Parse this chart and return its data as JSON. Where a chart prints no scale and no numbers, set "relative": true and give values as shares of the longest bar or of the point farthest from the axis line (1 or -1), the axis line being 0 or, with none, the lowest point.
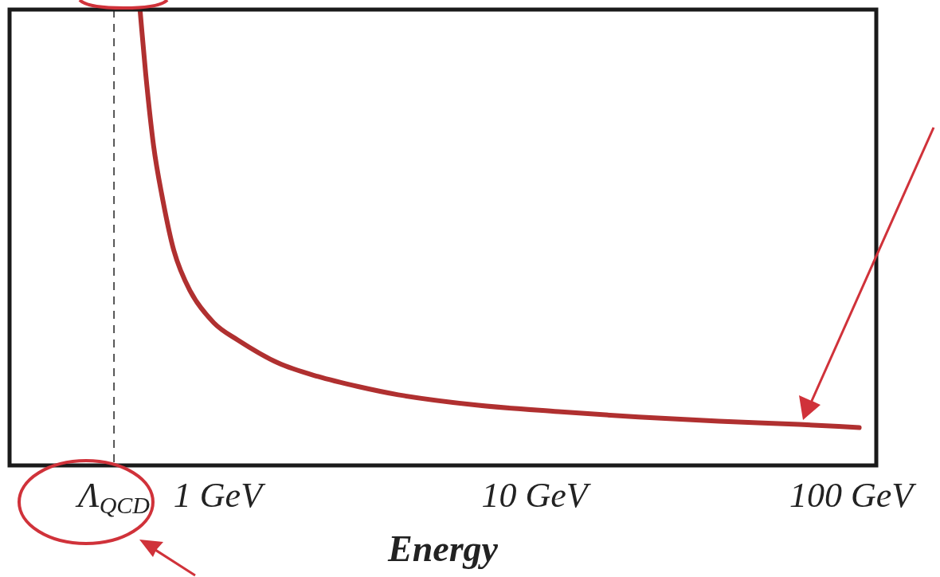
{
  "chart_data": {
    "type": "line",
    "relative": true,
    "xlabel": "Energy",
    "log": "x",
    "xlim": [
      0.22,
      120
    ],
    "xticks": [
      {
        "value": 0.47,
        "label": "Λ$_{QCD}$"
      },
      {
        "value": 1,
        "label": "1 GeV"
      },
      {
        "value": 10,
        "label": "10 GeV"
      },
      {
        "value": 100,
        "label": "100 GeV"
      }
    ],
    "ref_lines": [
      {
        "axis": "x",
        "value": 0.47,
        "color": "#222222",
        "line_style": "dashed"
      }
    ],
    "legend": false,
    "grid": false,
    "marker": "none",
    "line_style": "solid",
    "series": [
      {
        "color": "#b03030",
        "x": [
          0.568,
          0.592,
          0.627,
          0.665,
          0.726,
          0.816,
          0.971,
          1.157,
          1.548,
          2.072,
          2.773,
          3.712,
          6.65,
          11.9,
          21.3,
          38.2,
          68.4,
          106
        ],
        "values": [
          1,
          0.859,
          0.701,
          0.595,
          0.472,
          0.384,
          0.313,
          0.275,
          0.225,
          0.195,
          0.173,
          0.155,
          0.132,
          0.118,
          0.106,
          0.097,
          0.09,
          0.083
        ]
      }
    ]
  }
}
